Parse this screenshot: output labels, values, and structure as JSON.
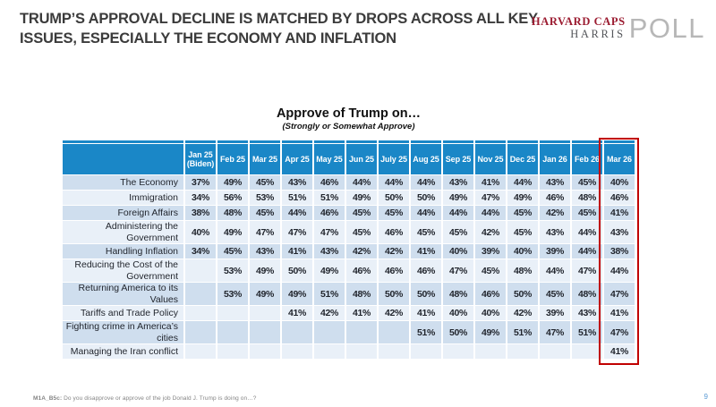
{
  "slide": {
    "title_line1": "TRUMP’S APPROVAL DECLINE IS MATCHED BY DROPS ACROSS ALL KEY",
    "title_line2": "ISSUES, ESPECIALLY THE ECONOMY AND INFLATION",
    "footnote_prefix": "M1A_B5c:",
    "footnote_text": " Do you disapprove or approve of the job Donald J. Trump is doing on…?",
    "page_number": "9"
  },
  "logo": {
    "line1": "HARVARD CAPS",
    "line2": "HARRIS",
    "poll": "POLL"
  },
  "chart_data": {
    "type": "table",
    "title": "Approve of Trump on…",
    "subtitle": "(Strongly or Somewhat Approve)",
    "highlight_column": "Mar 26",
    "columns": [
      "Jan 25\n(Biden)",
      "Feb 25",
      "Mar 25",
      "Apr 25",
      "May 25",
      "Jun 25",
      "July 25",
      "Aug 25",
      "Sep 25",
      "Nov 25",
      "Dec 25",
      "Jan 26",
      "Feb 26",
      "Mar 26"
    ],
    "rows": [
      {
        "label": "The Economy",
        "values": [
          "37%",
          "49%",
          "45%",
          "43%",
          "46%",
          "44%",
          "44%",
          "44%",
          "43%",
          "41%",
          "44%",
          "43%",
          "45%",
          "40%"
        ]
      },
      {
        "label": "Immigration",
        "values": [
          "34%",
          "56%",
          "53%",
          "51%",
          "51%",
          "49%",
          "50%",
          "50%",
          "49%",
          "47%",
          "49%",
          "46%",
          "48%",
          "46%"
        ]
      },
      {
        "label": "Foreign Affairs",
        "values": [
          "38%",
          "48%",
          "45%",
          "44%",
          "46%",
          "45%",
          "45%",
          "44%",
          "44%",
          "44%",
          "45%",
          "42%",
          "45%",
          "41%"
        ]
      },
      {
        "label": "Administering the Government",
        "values": [
          "40%",
          "49%",
          "47%",
          "47%",
          "47%",
          "45%",
          "46%",
          "45%",
          "45%",
          "42%",
          "45%",
          "43%",
          "44%",
          "43%"
        ]
      },
      {
        "label": "Handling Inflation",
        "values": [
          "34%",
          "45%",
          "43%",
          "41%",
          "43%",
          "42%",
          "42%",
          "41%",
          "40%",
          "39%",
          "40%",
          "39%",
          "44%",
          "38%"
        ]
      },
      {
        "label": "Reducing the Cost of the Government",
        "values": [
          "",
          "53%",
          "49%",
          "50%",
          "49%",
          "46%",
          "46%",
          "46%",
          "47%",
          "45%",
          "48%",
          "44%",
          "47%",
          "44%"
        ]
      },
      {
        "label": "Returning America to its Values",
        "values": [
          "",
          "53%",
          "49%",
          "49%",
          "51%",
          "48%",
          "50%",
          "50%",
          "48%",
          "46%",
          "50%",
          "45%",
          "48%",
          "47%"
        ]
      },
      {
        "label": "Tariffs and Trade Policy",
        "values": [
          "",
          "",
          "",
          "41%",
          "42%",
          "41%",
          "42%",
          "41%",
          "40%",
          "40%",
          "42%",
          "39%",
          "43%",
          "41%"
        ]
      },
      {
        "label": "Fighting crime in America’s cities",
        "values": [
          "",
          "",
          "",
          "",
          "",
          "",
          "",
          "51%",
          "50%",
          "49%",
          "51%",
          "47%",
          "51%",
          "47%"
        ]
      },
      {
        "label": "Managing the Iran conflict",
        "values": [
          "",
          "",
          "",
          "",
          "",
          "",
          "",
          "",
          "",
          "",
          "",
          "",
          "",
          "41%"
        ]
      }
    ]
  },
  "colors": {
    "header_blue": "#1a87c7",
    "row_dark": "#cfdeee",
    "row_light": "#e9f0f8",
    "table_text": "#22262e",
    "highlight_red": "#c00000",
    "title_text": "#3b3b3b",
    "logo_maroon": "#9b1b30",
    "logo_gray_dark": "#54565a",
    "logo_gray_light": "#b7b7b7",
    "footnote_gray": "#848484",
    "page_num_blue": "#5b9bd5"
  }
}
